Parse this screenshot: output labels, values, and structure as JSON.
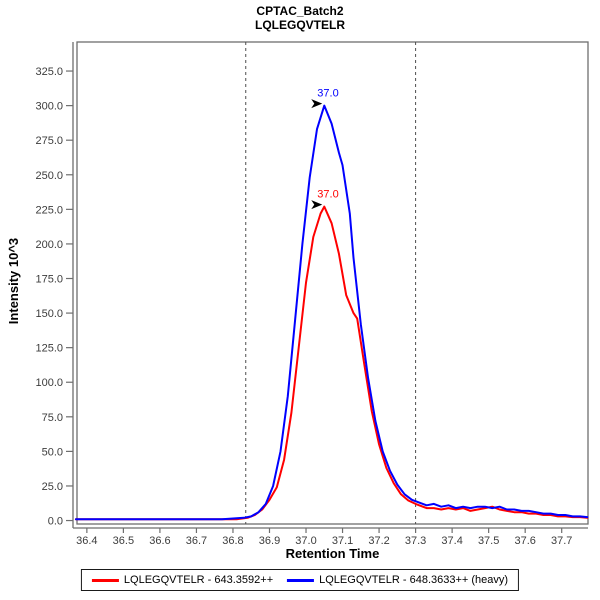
{
  "title": {
    "line1": "CPTAC_Batch2",
    "line2": "LQLEGQVTELR"
  },
  "chart_data": {
    "type": "line",
    "title": "CPTAC_Batch2",
    "subtitle": "LQLEGQVTELR",
    "xlabel": "Retention Time",
    "ylabel": "Intensity 10^3",
    "xlim": [
      36.373,
      37.772
    ],
    "ylim": [
      -2.5,
      346
    ],
    "x_ticks": [
      36.4,
      36.5,
      36.6,
      36.7,
      36.8,
      36.9,
      37.0,
      37.1,
      37.2,
      37.3,
      37.4,
      37.5,
      37.6,
      37.7
    ],
    "y_ticks": [
      0,
      25,
      50,
      75,
      100,
      125,
      150,
      175,
      200,
      225,
      250,
      275,
      300,
      325
    ],
    "x_tick_decimals": 1,
    "y_tick_decimals": 1,
    "grid": "off",
    "legend_position": "bottom",
    "integration_boundaries": [
      36.835,
      37.3
    ],
    "series": [
      {
        "role": "light",
        "name": "LQLEGQVTELR - 643.3592++",
        "color": "#ff0000",
        "peak_annotation": {
          "label": "37.0",
          "x": 37.05,
          "y": 227
        },
        "points": [
          [
            36.37,
            1
          ],
          [
            36.42,
            1
          ],
          [
            36.47,
            1
          ],
          [
            36.52,
            1
          ],
          [
            36.57,
            1
          ],
          [
            36.62,
            1
          ],
          [
            36.67,
            1
          ],
          [
            36.72,
            1
          ],
          [
            36.77,
            1
          ],
          [
            36.81,
            1
          ],
          [
            36.84,
            2
          ],
          [
            36.86,
            4
          ],
          [
            36.88,
            8
          ],
          [
            36.9,
            15
          ],
          [
            36.92,
            24
          ],
          [
            36.94,
            44
          ],
          [
            36.96,
            78
          ],
          [
            36.98,
            125
          ],
          [
            37.0,
            172
          ],
          [
            37.02,
            205
          ],
          [
            37.04,
            222
          ],
          [
            37.05,
            227
          ],
          [
            37.07,
            215
          ],
          [
            37.09,
            193
          ],
          [
            37.11,
            163
          ],
          [
            37.13,
            150
          ],
          [
            37.14,
            146
          ],
          [
            37.16,
            112
          ],
          [
            37.18,
            79
          ],
          [
            37.2,
            55
          ],
          [
            37.22,
            38
          ],
          [
            37.24,
            27
          ],
          [
            37.26,
            19
          ],
          [
            37.28,
            14.5
          ],
          [
            37.3,
            12
          ],
          [
            37.31,
            11
          ],
          [
            37.33,
            9
          ],
          [
            37.35,
            9
          ],
          [
            37.37,
            8
          ],
          [
            37.39,
            9
          ],
          [
            37.41,
            8
          ],
          [
            37.43,
            9
          ],
          [
            37.45,
            7
          ],
          [
            37.47,
            8
          ],
          [
            37.49,
            9
          ],
          [
            37.51,
            10
          ],
          [
            37.53,
            8
          ],
          [
            37.55,
            7
          ],
          [
            37.57,
            6
          ],
          [
            37.59,
            6
          ],
          [
            37.61,
            5
          ],
          [
            37.63,
            5
          ],
          [
            37.65,
            4
          ],
          [
            37.67,
            4
          ],
          [
            37.69,
            3
          ],
          [
            37.71,
            3
          ],
          [
            37.73,
            2.5
          ],
          [
            37.75,
            2.5
          ],
          [
            37.77,
            2
          ]
        ]
      },
      {
        "role": "heavy",
        "name": "LQLEGQVTELR - 648.3633++ (heavy)",
        "color": "#0000ff",
        "peak_annotation": {
          "label": "37.0",
          "x": 37.05,
          "y": 300
        },
        "points": [
          [
            36.37,
            1
          ],
          [
            36.42,
            1
          ],
          [
            36.47,
            1
          ],
          [
            36.52,
            1
          ],
          [
            36.57,
            1
          ],
          [
            36.62,
            1
          ],
          [
            36.67,
            1
          ],
          [
            36.72,
            1
          ],
          [
            36.77,
            1
          ],
          [
            36.8,
            1.5
          ],
          [
            36.83,
            2
          ],
          [
            36.85,
            3
          ],
          [
            36.87,
            6
          ],
          [
            36.89,
            12
          ],
          [
            36.91,
            25
          ],
          [
            36.93,
            50
          ],
          [
            36.95,
            90
          ],
          [
            36.97,
            145
          ],
          [
            36.99,
            200
          ],
          [
            37.01,
            248
          ],
          [
            37.03,
            283
          ],
          [
            37.05,
            300
          ],
          [
            37.07,
            287
          ],
          [
            37.09,
            266
          ],
          [
            37.1,
            257
          ],
          [
            37.12,
            222
          ],
          [
            37.13,
            190
          ],
          [
            37.15,
            142
          ],
          [
            37.17,
            103
          ],
          [
            37.19,
            72
          ],
          [
            37.21,
            50
          ],
          [
            37.23,
            36
          ],
          [
            37.25,
            26
          ],
          [
            37.27,
            19
          ],
          [
            37.29,
            15
          ],
          [
            37.31,
            13
          ],
          [
            37.33,
            11
          ],
          [
            37.35,
            12
          ],
          [
            37.37,
            10
          ],
          [
            37.39,
            11
          ],
          [
            37.41,
            9
          ],
          [
            37.43,
            10
          ],
          [
            37.45,
            9
          ],
          [
            37.47,
            10
          ],
          [
            37.49,
            10
          ],
          [
            37.51,
            9
          ],
          [
            37.53,
            10
          ],
          [
            37.55,
            8
          ],
          [
            37.57,
            8
          ],
          [
            37.59,
            7
          ],
          [
            37.61,
            7
          ],
          [
            37.63,
            6
          ],
          [
            37.65,
            5
          ],
          [
            37.67,
            5
          ],
          [
            37.69,
            4
          ],
          [
            37.71,
            4
          ],
          [
            37.73,
            3
          ],
          [
            37.75,
            3
          ],
          [
            37.77,
            2.5
          ]
        ]
      }
    ]
  },
  "legend": {
    "items": [
      {
        "label": "LQLEGQVTELR - 643.3592++",
        "color": "#ff0000"
      },
      {
        "label": "LQLEGQVTELR - 648.3633++ (heavy)",
        "color": "#0000ff"
      }
    ]
  },
  "colors": {
    "frame": "#6e6e6e",
    "tick_text": "#3c3c3c",
    "boundary": "#4d4d4d",
    "annotation_arrow": "#000000",
    "background": "#ffffff"
  }
}
